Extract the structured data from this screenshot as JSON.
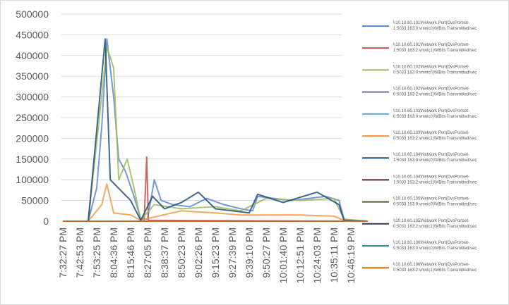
{
  "chart_data": {
    "type": "line",
    "title": "",
    "xlabel": "",
    "ylabel": "",
    "ylim": [
      0,
      500000
    ],
    "y_ticks": [
      0,
      50000,
      100000,
      150000,
      200000,
      250000,
      300000,
      350000,
      400000,
      450000,
      500000
    ],
    "x_tick_labels": [
      "7:32:27 PM",
      "7:42:53 PM",
      "7:53:25 PM",
      "8:04:36 PM",
      "8:15:46 PM",
      "8:27:05 PM",
      "8:38:37 PM",
      "8:50:23 PM",
      "9:02:26 PM",
      "9:15:23 PM",
      "9:27:39 PM",
      "9:39:10 PM",
      "9:50:27 PM",
      "10:01:40 PM",
      "10:12:51 PM",
      "10:24:03 PM",
      "10:35:11 PM",
      "10:46:19 PM"
    ],
    "grid": "horizontal",
    "legend_position": "right",
    "series": [
      {
        "name": "\\\\10.10.60.101\\Network Port(DvsPortset-1:5033 163:0:vmnic0)\\MBits Transmitted/sec",
        "color": "#5b8ad6",
        "points": [
          [
            0,
            0
          ],
          [
            1.5,
            0
          ],
          [
            2,
            80000
          ],
          [
            2.3,
            230000
          ],
          [
            2.6,
            440000
          ],
          [
            3,
            300000
          ],
          [
            3.3,
            150000
          ],
          [
            3.7,
            120000
          ],
          [
            4.2,
            60000
          ],
          [
            4.6,
            5000
          ],
          [
            5.0,
            5000
          ],
          [
            5.4,
            100000
          ],
          [
            5.8,
            50000
          ],
          [
            6.5,
            40000
          ],
          [
            7.5,
            35000
          ],
          [
            8.5,
            55000
          ],
          [
            9.5,
            40000
          ],
          [
            10.5,
            30000
          ],
          [
            11.2,
            25000
          ],
          [
            11.5,
            60000
          ],
          [
            12.5,
            55000
          ],
          [
            13.5,
            50000
          ],
          [
            14.5,
            55000
          ],
          [
            15.5,
            60000
          ],
          [
            16.3,
            50000
          ],
          [
            16.6,
            5000
          ],
          [
            17,
            2000
          ],
          [
            18,
            0
          ]
        ]
      },
      {
        "name": "\\\\10.10.60.101\\Network Port(DvsPortset-1:5033 163:2:vmnic1)\\MBits Transmitted/sec",
        "color": "#c0504d",
        "points": [
          [
            0,
            0
          ],
          [
            4.8,
            0
          ],
          [
            4.95,
            155000
          ],
          [
            5.05,
            2000
          ],
          [
            18,
            0
          ]
        ]
      },
      {
        "name": "\\\\10.10.60.102\\Network Port(DvsPortset-0:5033 163:0:vmnic0)\\MBits Transmitted/sec",
        "color": "#9bbb59",
        "points": [
          [
            0,
            0
          ],
          [
            1.5,
            0
          ],
          [
            2.6,
            420000
          ],
          [
            3,
            370000
          ],
          [
            3.3,
            100000
          ],
          [
            3.8,
            150000
          ],
          [
            4.2,
            80000
          ],
          [
            4.6,
            3000
          ],
          [
            5.4,
            40000
          ],
          [
            7,
            30000
          ],
          [
            9,
            35000
          ],
          [
            10.5,
            25000
          ],
          [
            12,
            55000
          ],
          [
            14,
            50000
          ],
          [
            16,
            55000
          ],
          [
            16.6,
            5000
          ],
          [
            18,
            0
          ]
        ]
      },
      {
        "name": "\\\\10.10.60.102\\Network Port(DvsPortset-0:5033 163:2:vmnic1)\\MBits Transmitted/sec",
        "color": "#8064a2",
        "points": [
          [
            0,
            0
          ],
          [
            18,
            0
          ]
        ]
      },
      {
        "name": "\\\\10.10.60.103\\Network Port(DvsPortset-0:5033 163:0:vmnic0)\\MBits Transmitted/sec",
        "color": "#4bacc6",
        "points": [
          [
            0,
            0
          ],
          [
            18,
            0
          ]
        ]
      },
      {
        "name": "\\\\10.10.60.103\\Network Port(DvsPortset-0:5033 163:2:vmnic1)\\MBits Transmitted/sec",
        "color": "#f79646",
        "points": [
          [
            0,
            0
          ],
          [
            1.5,
            0
          ],
          [
            2.3,
            40000
          ],
          [
            2.6,
            90000
          ],
          [
            3,
            20000
          ],
          [
            4,
            15000
          ],
          [
            4.6,
            2000
          ],
          [
            5.4,
            10000
          ],
          [
            7,
            25000
          ],
          [
            9,
            20000
          ],
          [
            10.5,
            15000
          ],
          [
            12,
            15000
          ],
          [
            14,
            15000
          ],
          [
            16,
            12000
          ],
          [
            16.6,
            2000
          ],
          [
            18,
            0
          ]
        ]
      },
      {
        "name": "\\\\10.10.60.104\\Network Port(DvsPortset-1:5033 163:0:vmnic0)\\MBits Transmitted/sec",
        "color": "#1f4e79",
        "points": [
          [
            0,
            0
          ],
          [
            1.5,
            0
          ],
          [
            2.5,
            440000
          ],
          [
            2.8,
            100000
          ],
          [
            4,
            50000
          ],
          [
            4.6,
            2000
          ],
          [
            5.3,
            60000
          ],
          [
            6,
            30000
          ],
          [
            7,
            45000
          ],
          [
            8,
            70000
          ],
          [
            9,
            30000
          ],
          [
            11,
            20000
          ],
          [
            11.5,
            65000
          ],
          [
            13,
            45000
          ],
          [
            15,
            70000
          ],
          [
            16.3,
            40000
          ],
          [
            16.6,
            2000
          ],
          [
            18,
            0
          ]
        ]
      },
      {
        "name": "\\\\10.10.60.104\\Network Port(DvsPortset-1:5033 163:2:vmnic1)\\MBits Transmitted/sec",
        "color": "#632523",
        "points": [
          [
            0,
            0
          ],
          [
            18,
            0
          ]
        ]
      },
      {
        "name": "\\\\10.10.60.105\\Network Port(DvsPortset-0:5033 163:0:vmnic0)\\MBits Transmitted/sec",
        "color": "#4f6228",
        "points": [
          [
            0,
            0
          ],
          [
            18,
            0
          ]
        ]
      },
      {
        "name": "\\\\10.10.60.105\\Network Port(DvsPortset-0:5033 163:2:vmnic1)\\MBits Transmitted/sec",
        "color": "#403151",
        "points": [
          [
            0,
            0
          ],
          [
            18,
            0
          ]
        ]
      },
      {
        "name": "\\\\10.10.60.106\\Network Port(DvsPortset-0:5033 163:0:vmnic0)\\MBits Transmitted/sec",
        "color": "#31859c",
        "points": [
          [
            0,
            0
          ],
          [
            18,
            0
          ]
        ]
      },
      {
        "name": "\\\\10.10.60.106\\Network Port(DvsPortset-0:5033 163:2:vmnic1)\\MBits Transmitted/sec",
        "color": "#e46c0a",
        "points": [
          [
            0,
            0
          ],
          [
            18,
            0
          ]
        ]
      }
    ]
  }
}
